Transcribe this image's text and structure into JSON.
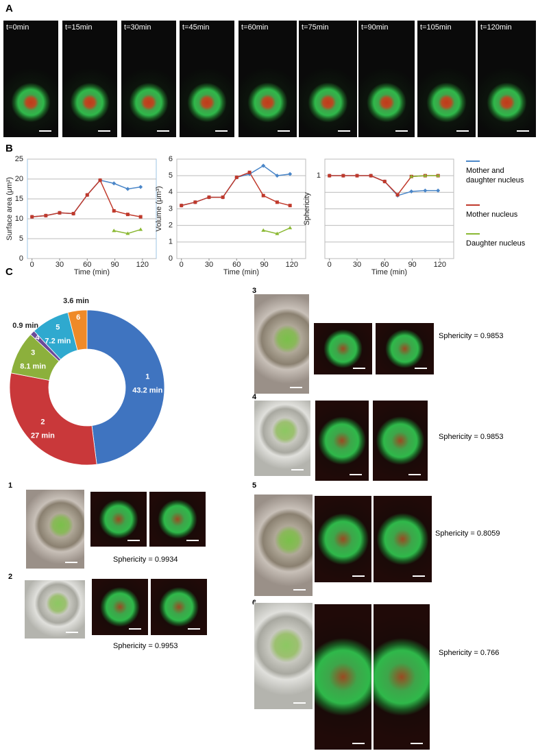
{
  "panel_labels": [
    "A",
    "B",
    "C"
  ],
  "time_labels": [
    "t=0min",
    "t=15min",
    "t=30min",
    "t=45min",
    "t=60min",
    "t=75min",
    "t=90min",
    "t=105min",
    "t=120min"
  ],
  "chart_data": [
    {
      "type": "line",
      "ylabel": "Surface area (μm²)",
      "xlabel": "Time (min)",
      "x": [
        0,
        15,
        30,
        45,
        60,
        74,
        89,
        104,
        118
      ],
      "xlim": [
        -5,
        135
      ],
      "xticks": [
        0,
        30,
        60,
        90,
        120
      ],
      "ylim": [
        0,
        25
      ],
      "yticks": [
        0,
        5,
        10,
        15,
        20,
        25
      ],
      "grid": true,
      "series": [
        {
          "color": "#4a86c8",
          "marker": "diamond",
          "values": [
            10.5,
            10.8,
            11.5,
            11.3,
            16,
            19.7,
            18.9,
            17.5,
            18
          ]
        },
        {
          "color": "#c0392b",
          "marker": "square",
          "values": [
            10.5,
            10.8,
            11.5,
            11.3,
            16,
            19.7,
            12,
            11.1,
            10.5
          ]
        },
        {
          "color": "#8ab832",
          "marker": "triangle",
          "values": [
            null,
            null,
            null,
            null,
            null,
            null,
            7,
            6.3,
            7.3
          ]
        }
      ]
    },
    {
      "type": "line",
      "ylabel": "Volume (μm³)",
      "xlabel": "Time (min)",
      "x": [
        0,
        15,
        30,
        45,
        60,
        74,
        89,
        104,
        118
      ],
      "xlim": [
        -5,
        135
      ],
      "xticks": [
        0,
        30,
        60,
        90,
        120
      ],
      "ylim": [
        0,
        6
      ],
      "yticks": [
        0,
        1,
        2,
        3,
        4,
        5,
        6
      ],
      "grid": true,
      "series": [
        {
          "color": "#4a86c8",
          "marker": "diamond",
          "values": [
            3.2,
            3.4,
            3.7,
            3.7,
            4.9,
            5.1,
            5.6,
            5.0,
            5.1
          ]
        },
        {
          "color": "#c0392b",
          "marker": "square",
          "values": [
            3.2,
            3.4,
            3.7,
            3.7,
            4.9,
            5.2,
            3.8,
            3.4,
            3.2
          ]
        },
        {
          "color": "#8ab832",
          "marker": "triangle",
          "values": [
            null,
            null,
            null,
            null,
            null,
            null,
            1.7,
            1.5,
            1.85
          ]
        }
      ]
    },
    {
      "type": "line",
      "ylabel": "Sphericity",
      "xlabel": "Time (min)",
      "x": [
        0,
        15,
        30,
        45,
        60,
        74,
        89,
        104,
        118
      ],
      "xlim": [
        -5,
        135
      ],
      "xticks": [
        0,
        30,
        60,
        90,
        120
      ],
      "ylim": [
        0,
        1.2
      ],
      "yticks": [
        1
      ],
      "grid_lines": [
        0.2,
        0.4,
        0.6,
        0.8
      ],
      "grid": true,
      "legend": "right",
      "series": [
        {
          "name": "Mother and daughter nucleus",
          "color": "#4a86c8",
          "marker": "diamond",
          "values": [
            1,
            1,
            1,
            1,
            0.93,
            0.76,
            0.81,
            0.82,
            0.82
          ]
        },
        {
          "name": "Mother nucleus",
          "color": "#c0392b",
          "marker": "square",
          "values": [
            1,
            1,
            1,
            1,
            0.93,
            0.77,
            0.99,
            1,
            1
          ]
        },
        {
          "name": "Daughter nucleus",
          "color": "#8ab832",
          "marker": "triangle",
          "values": [
            null,
            null,
            null,
            null,
            null,
            null,
            0.99,
            1,
            1
          ]
        }
      ]
    },
    {
      "type": "pie",
      "hole": true,
      "categories": [
        "1",
        "2",
        "3",
        "4",
        "5",
        "6"
      ],
      "values": [
        43.2,
        27,
        8.1,
        0.9,
        7.2,
        3.6
      ],
      "value_labels": [
        "43.2 min",
        "27 min",
        "8.1 min",
        "0.9 min",
        "7.2 min",
        "3.6 min"
      ],
      "colors": [
        "#3f74c0",
        "#c9383a",
        "#8cb03c",
        "#6a4a9a",
        "#2fa9cf",
        "#ef8a28"
      ]
    }
  ],
  "cells": [
    {
      "label": "1",
      "sphericity": "Sphericity = 0.9934"
    },
    {
      "label": "2",
      "sphericity": "Sphericity = 0.9953"
    },
    {
      "label": "3",
      "sphericity": "Sphericity = 0.9853"
    },
    {
      "label": "4",
      "sphericity": "Sphericity = 0.9853"
    },
    {
      "label": "5",
      "sphericity": "Sphericity = 0.8059"
    },
    {
      "label": "6",
      "sphericity": "Sphericity = 0.766"
    }
  ]
}
